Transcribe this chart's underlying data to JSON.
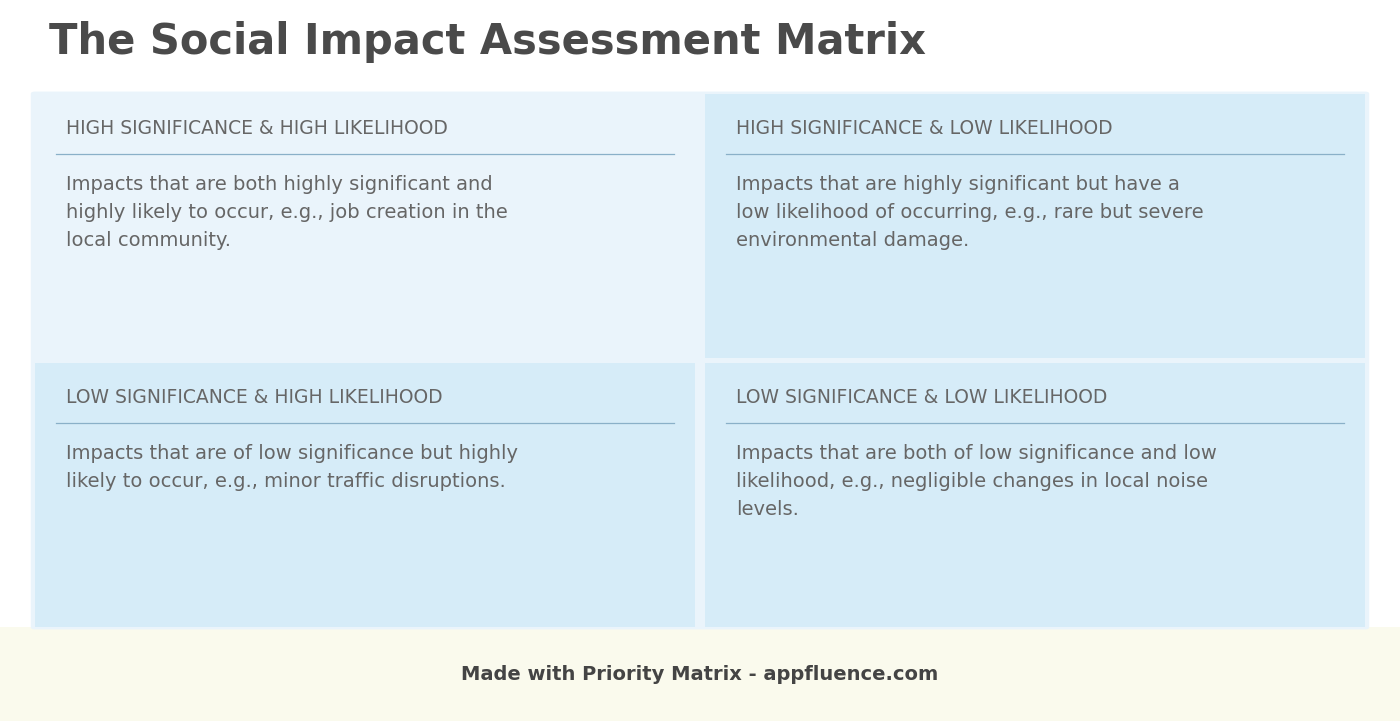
{
  "title": "The Social Impact Assessment Matrix",
  "title_fontsize": 30,
  "title_color": "#4a4a4a",
  "title_fontweight": "bold",
  "background_color": "#ffffff",
  "footer_area_color": "#fafaed",
  "cell_bg_light": "#eaf4fb",
  "cell_bg_medium": "#d6ecf8",
  "divider_color": "#8ab0c8",
  "header_color": "#666666",
  "body_color": "#666666",
  "footer_text": "Made with Priority Matrix - appfluence.com",
  "footer_fontsize": 14,
  "footer_color": "#444444",
  "cells": [
    {
      "title": "HIGH SIGNIFICANCE & HIGH LIKELIHOOD",
      "body": "Impacts that are both highly significant and\nhighly likely to occur, e.g., job creation in the\nlocal community.",
      "bg": "light"
    },
    {
      "title": "HIGH SIGNIFICANCE & LOW LIKELIHOOD",
      "body": "Impacts that are highly significant but have a\nlow likelihood of occurring, e.g., rare but severe\nenvironmental damage.",
      "bg": "medium"
    },
    {
      "title": "LOW SIGNIFICANCE & HIGH LIKELIHOOD",
      "body": "Impacts that are of low significance but highly\nlikely to occur, e.g., minor traffic disruptions.",
      "bg": "medium"
    },
    {
      "title": "LOW SIGNIFICANCE & LOW LIKELIHOOD",
      "body": "Impacts that are both of low significance and low\nlikelihood, e.g., negligible changes in local noise\nlevels.",
      "bg": "medium"
    }
  ],
  "header_fontsize": 13.5,
  "body_fontsize": 14
}
